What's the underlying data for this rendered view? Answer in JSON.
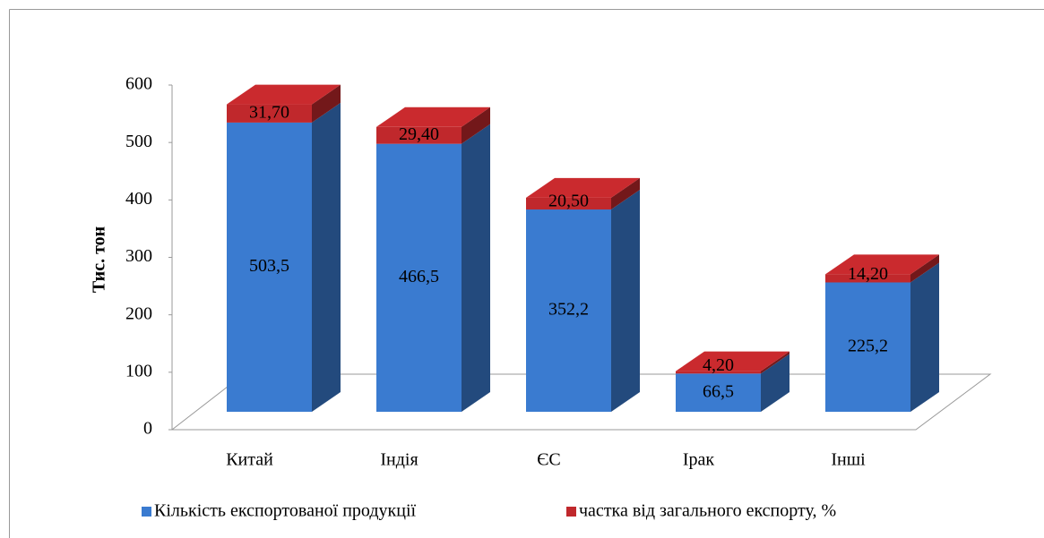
{
  "chart_data": {
    "type": "bar3d_stacked",
    "y_label": "Тис. тон",
    "categories": [
      "Китай",
      "Індія",
      "ЄС",
      "Ірак",
      "Інші"
    ],
    "series": [
      {
        "name": "Кількість експортованої продукції",
        "color": "#3a7bd0",
        "values": [
          503.5,
          466.5,
          352.2,
          66.5,
          225.2
        ],
        "value_labels": [
          "503,5",
          "466,5",
          "352,2",
          "66,5",
          "225,2"
        ]
      },
      {
        "name": "частка від загального експорту, %",
        "color": "#c0282c",
        "values": [
          31.7,
          29.4,
          20.5,
          4.2,
          14.2
        ],
        "value_labels": [
          "31,70",
          "29,40",
          "20,50",
          "4,20",
          "14,20"
        ]
      }
    ],
    "ylim": [
      0,
      600
    ],
    "yticks": [
      0,
      100,
      200,
      300,
      400,
      500,
      600
    ],
    "legend": "bottom"
  }
}
